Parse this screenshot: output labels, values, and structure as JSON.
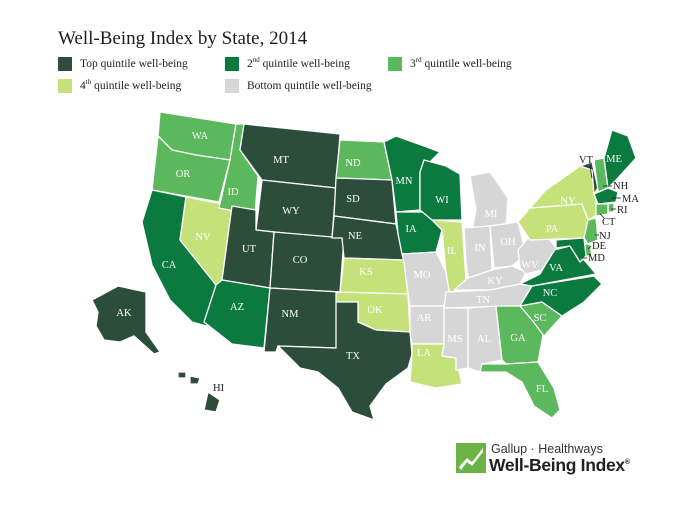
{
  "title": "Well-Being Index by State, 2014",
  "legend": [
    {
      "base": "Top quintile well-being",
      "sup": "",
      "tail": "",
      "color": "#2d4d3b"
    },
    {
      "base": "2",
      "sup": "nd",
      "tail": " quintile well-being",
      "color": "#0b7a3e"
    },
    {
      "base": "3",
      "sup": "rd",
      "tail": " quintile well-being",
      "color": "#5cb85c"
    },
    {
      "base": "4",
      "sup": "th",
      "tail": " quintile well-being",
      "color": "#c5e17a"
    },
    {
      "base": "Bottom quintile well-being",
      "sup": "",
      "tail": "",
      "color": "#d6d6d6"
    }
  ],
  "states": {
    "WA": {
      "label": "WA",
      "tier": 3
    },
    "OR": {
      "label": "OR",
      "tier": 3
    },
    "CA": {
      "label": "CA",
      "tier": 2
    },
    "NV": {
      "label": "NV",
      "tier": 4
    },
    "ID": {
      "label": "ID",
      "tier": 3
    },
    "MT": {
      "label": "MT",
      "tier": 1
    },
    "WY": {
      "label": "WY",
      "tier": 1
    },
    "UT": {
      "label": "UT",
      "tier": 1
    },
    "AZ": {
      "label": "AZ",
      "tier": 2
    },
    "CO": {
      "label": "CO",
      "tier": 1
    },
    "NM": {
      "label": "NM",
      "tier": 1
    },
    "ND": {
      "label": "ND",
      "tier": 3
    },
    "SD": {
      "label": "SD",
      "tier": 1
    },
    "NE": {
      "label": "NE",
      "tier": 1
    },
    "KS": {
      "label": "KS",
      "tier": 4
    },
    "OK": {
      "label": "OK",
      "tier": 4
    },
    "TX": {
      "label": "TX",
      "tier": 1
    },
    "MN": {
      "label": "MN",
      "tier": 2
    },
    "IA": {
      "label": "IA",
      "tier": 2
    },
    "MO": {
      "label": "MO",
      "tier": 5
    },
    "AR": {
      "label": "AR",
      "tier": 5
    },
    "LA": {
      "label": "LA",
      "tier": 4
    },
    "WI": {
      "label": "WI",
      "tier": 2
    },
    "IL": {
      "label": "IL",
      "tier": 4
    },
    "MI": {
      "label": "MI",
      "tier": 5
    },
    "IN": {
      "label": "IN",
      "tier": 5
    },
    "OH": {
      "label": "OH",
      "tier": 5
    },
    "KY": {
      "label": "KY",
      "tier": 5
    },
    "TN": {
      "label": "TN",
      "tier": 5
    },
    "MS": {
      "label": "MS",
      "tier": 5
    },
    "AL": {
      "label": "AL",
      "tier": 5
    },
    "GA": {
      "label": "GA",
      "tier": 3
    },
    "FL": {
      "label": "FL",
      "tier": 3
    },
    "SC": {
      "label": "SC",
      "tier": 3
    },
    "NC": {
      "label": "NC",
      "tier": 2
    },
    "VA": {
      "label": "VA",
      "tier": 2
    },
    "WV": {
      "label": "WV",
      "tier": 5
    },
    "PA": {
      "label": "PA",
      "tier": 4
    },
    "NY": {
      "label": "NY",
      "tier": 4
    },
    "VT": {
      "label": "VT",
      "tier": 1
    },
    "NH": {
      "label": "NH",
      "tier": 3
    },
    "ME": {
      "label": "ME",
      "tier": 2
    },
    "MA": {
      "label": "MA",
      "tier": 2
    },
    "RI": {
      "label": "RI",
      "tier": 3
    },
    "CT": {
      "label": "CT",
      "tier": 3
    },
    "NJ": {
      "label": "NJ",
      "tier": 3
    },
    "DE": {
      "label": "DE",
      "tier": 3
    },
    "MD": {
      "label": "MD",
      "tier": 2
    },
    "AK": {
      "label": "AK",
      "tier": 1
    },
    "HI": {
      "label": "HI",
      "tier": 1
    }
  },
  "logo": {
    "top_line": "Gallup · Healthways",
    "main_line": "Well-Being Index",
    "mark": "®"
  }
}
